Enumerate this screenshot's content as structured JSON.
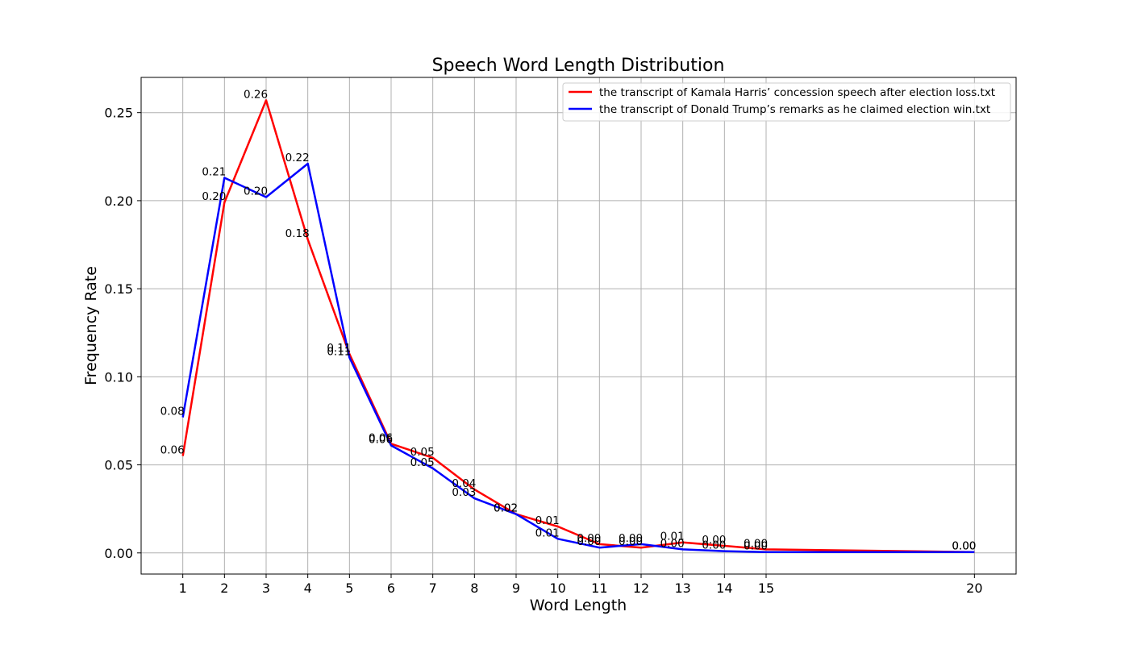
{
  "chart_data": {
    "type": "line",
    "title": "Speech Word Length Distribution",
    "xlabel": "Word Length",
    "ylabel": "Frequency Rate",
    "xlim": [
      0.0,
      21.0
    ],
    "ylim": [
      -0.012,
      0.27
    ],
    "xticks": [
      1,
      2,
      3,
      4,
      5,
      6,
      7,
      8,
      9,
      10,
      11,
      12,
      13,
      14,
      15,
      20
    ],
    "yticks": [
      0.0,
      0.05,
      0.1,
      0.15,
      0.2,
      0.25
    ],
    "ytick_labels": [
      "0.00",
      "0.05",
      "0.10",
      "0.15",
      "0.20",
      "0.25"
    ],
    "grid": true,
    "legend_position": "top-right",
    "series": [
      {
        "name": "the transcript of Kamala Harris’ concession speech after election loss.txt",
        "color": "#ff0000",
        "x": [
          1,
          2,
          3,
          4,
          5,
          6,
          7,
          8,
          9,
          10,
          11,
          12,
          13,
          14,
          15,
          20
        ],
        "y": [
          0.055,
          0.199,
          0.257,
          0.178,
          0.113,
          0.062,
          0.054,
          0.036,
          0.022,
          0.015,
          0.005,
          0.003,
          0.006,
          0.004,
          0.002,
          0.0005
        ],
        "labels": [
          "0.06",
          "0.20",
          "0.26",
          "0.18",
          "0.11",
          "0.06",
          "0.05",
          "0.04",
          "0.02",
          "0.01",
          "0.00",
          "0.00",
          "0.01",
          "0.00",
          "0.00",
          "0.00"
        ]
      },
      {
        "name": "the transcript of Donald Trump’s remarks as he claimed election win.txt",
        "color": "#0000ff",
        "x": [
          1,
          2,
          3,
          4,
          5,
          6,
          7,
          8,
          9,
          10,
          11,
          12,
          13,
          14,
          15,
          20
        ],
        "y": [
          0.077,
          0.213,
          0.202,
          0.221,
          0.111,
          0.061,
          0.048,
          0.031,
          0.022,
          0.008,
          0.003,
          0.005,
          0.002,
          0.001,
          0.0005,
          0.0005
        ],
        "labels": [
          "0.08",
          "0.21",
          "0.20",
          "0.22",
          "0.11",
          "0.06",
          "0.05",
          "0.03",
          "0.02",
          "0.01",
          "0.00",
          "0.00",
          "0.00",
          "0.00",
          "0.00",
          "0.00"
        ]
      }
    ]
  }
}
